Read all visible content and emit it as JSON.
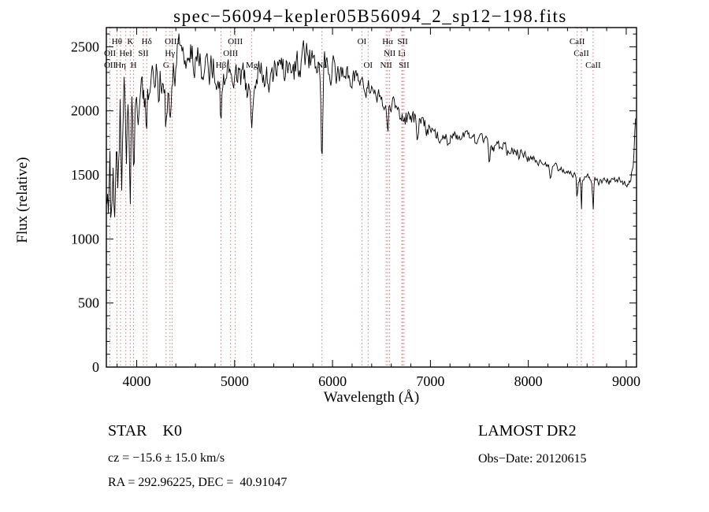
{
  "title": "spec−56094−kepler05B56094_2_sp12−198.fits",
  "footer": {
    "class_label": "STAR    K0",
    "survey": "LAMOST DR2",
    "cz": "cz = −15.6 ± 15.0 km/s",
    "obs_date": "Obs−Date: 20120615",
    "radec": "RA = 292.96225, DEC =  40.91047"
  },
  "chart_data": {
    "type": "line",
    "title": "spec−56094−kepler05B56094_2_sp12−198.fits",
    "xlabel": "Wavelength (Å)",
    "ylabel": "Flux (relative)",
    "xlim": [
      3690,
      9105
    ],
    "ylim": [
      0,
      2650
    ],
    "xticks": [
      4000,
      5000,
      6000,
      7000,
      8000,
      9000
    ],
    "yticks": [
      0,
      500,
      1000,
      1500,
      2000,
      2500
    ],
    "grid": false,
    "legend": "none",
    "colors": {
      "spectrum": "#000000",
      "reference_lines": "#cc7b7b"
    },
    "reference_lines": [
      3727,
      3798,
      3835,
      3889,
      3934,
      3968,
      4068,
      4102,
      4300,
      4340,
      4363,
      4861,
      4959,
      5007,
      5175,
      5892,
      6300,
      6364,
      6548,
      6563,
      6583,
      6708,
      6716,
      6731,
      8498,
      8542,
      8662
    ],
    "line_labels": [
      {
        "text": "Hθ",
        "wl": 3798,
        "row": 1
      },
      {
        "text": "K",
        "wl": 3934,
        "row": 1
      },
      {
        "text": "Hδ",
        "wl": 4102,
        "row": 1
      },
      {
        "text": "OIII",
        "wl": 4363,
        "row": 1
      },
      {
        "text": "OIII",
        "wl": 5007,
        "row": 1
      },
      {
        "text": "OI",
        "wl": 6300,
        "row": 1
      },
      {
        "text": "Hα",
        "wl": 6563,
        "row": 1
      },
      {
        "text": "SII",
        "wl": 6716,
        "row": 1
      },
      {
        "text": "CaII",
        "wl": 8498,
        "row": 1
      },
      {
        "text": "OII",
        "wl": 3727,
        "row": 2
      },
      {
        "text": "HeI",
        "wl": 3889,
        "row": 2
      },
      {
        "text": "SII",
        "wl": 4068,
        "row": 2
      },
      {
        "text": "Hγ",
        "wl": 4340,
        "row": 2
      },
      {
        "text": "OIII",
        "wl": 4959,
        "row": 2
      },
      {
        "text": "NII",
        "wl": 6583,
        "row": 2
      },
      {
        "text": "Li",
        "wl": 6708,
        "row": 2
      },
      {
        "text": "CaII",
        "wl": 8542,
        "row": 2
      },
      {
        "text": "OII",
        "wl": 3727,
        "row": 3
      },
      {
        "text": "Hη",
        "wl": 3835,
        "row": 3
      },
      {
        "text": "H",
        "wl": 3968,
        "row": 3
      },
      {
        "text": "G",
        "wl": 4300,
        "row": 3
      },
      {
        "text": "Hβ",
        "wl": 4861,
        "row": 3
      },
      {
        "text": "Mg",
        "wl": 5175,
        "row": 3
      },
      {
        "text": "Na",
        "wl": 5892,
        "row": 3
      },
      {
        "text": "OI",
        "wl": 6364,
        "row": 3
      },
      {
        "text": "NII",
        "wl": 6548,
        "row": 3
      },
      {
        "text": "SII",
        "wl": 6731,
        "row": 3
      },
      {
        "text": "CaII",
        "wl": 8662,
        "row": 3
      }
    ],
    "spectrum": {
      "range": [
        3695,
        9095
      ],
      "step": 8,
      "envelope": [
        [
          3695,
          1500
        ],
        [
          3710,
          1050
        ],
        [
          3725,
          1700
        ],
        [
          3740,
          950
        ],
        [
          3758,
          1850
        ],
        [
          3775,
          1000
        ],
        [
          3792,
          1950
        ],
        [
          3810,
          1250
        ],
        [
          3830,
          2050
        ],
        [
          3850,
          1400
        ],
        [
          3870,
          2100
        ],
        [
          3892,
          1550
        ],
        [
          3912,
          2150
        ],
        [
          3935,
          1650
        ],
        [
          3955,
          2100
        ],
        [
          3975,
          1800
        ],
        [
          4000,
          2150
        ],
        [
          4030,
          1950
        ],
        [
          4060,
          2100
        ],
        [
          4100,
          2050
        ],
        [
          4140,
          2250
        ],
        [
          4180,
          2150
        ],
        [
          4220,
          2300
        ],
        [
          4260,
          2250
        ],
        [
          4300,
          2200
        ],
        [
          4345,
          2120
        ],
        [
          4385,
          2350
        ],
        [
          4425,
          2450
        ],
        [
          4465,
          2500
        ],
        [
          4505,
          2420
        ],
        [
          4545,
          2480
        ],
        [
          4585,
          2380
        ],
        [
          4625,
          2420
        ],
        [
          4665,
          2350
        ],
        [
          4705,
          2380
        ],
        [
          4745,
          2320
        ],
        [
          4785,
          2350
        ],
        [
          4825,
          2300
        ],
        [
          4865,
          2220
        ],
        [
          4905,
          2320
        ],
        [
          4945,
          2280
        ],
        [
          4985,
          2300
        ],
        [
          5025,
          2280
        ],
        [
          5065,
          2260
        ],
        [
          5105,
          2220
        ],
        [
          5145,
          2150
        ],
        [
          5180,
          2100
        ],
        [
          5225,
          2250
        ],
        [
          5265,
          2300
        ],
        [
          5305,
          2280
        ],
        [
          5355,
          2250
        ],
        [
          5405,
          2300
        ],
        [
          5455,
          2330
        ],
        [
          5505,
          2300
        ],
        [
          5555,
          2340
        ],
        [
          5605,
          2330
        ],
        [
          5655,
          2380
        ],
        [
          5705,
          2400
        ],
        [
          5755,
          2430
        ],
        [
          5805,
          2420
        ],
        [
          5845,
          2400
        ],
        [
          5885,
          2400
        ],
        [
          5925,
          2380
        ],
        [
          5975,
          2360
        ],
        [
          6035,
          2320
        ],
        [
          6105,
          2290
        ],
        [
          6185,
          2260
        ],
        [
          6265,
          2230
        ],
        [
          6345,
          2190
        ],
        [
          6425,
          2140
        ],
        [
          6505,
          2090
        ],
        [
          6575,
          2050
        ],
        [
          6655,
          2010
        ],
        [
          6755,
          1960
        ],
        [
          6855,
          1910
        ],
        [
          6955,
          1860
        ],
        [
          7055,
          1820
        ],
        [
          7155,
          1795
        ],
        [
          7255,
          1805
        ],
        [
          7355,
          1785
        ],
        [
          7455,
          1765
        ],
        [
          7555,
          1750
        ],
        [
          7655,
          1715
        ],
        [
          7755,
          1700
        ],
        [
          7855,
          1675
        ],
        [
          7955,
          1650
        ],
        [
          8055,
          1620
        ],
        [
          8155,
          1590
        ],
        [
          8255,
          1560
        ],
        [
          8355,
          1535
        ],
        [
          8455,
          1510
        ],
        [
          8525,
          1485
        ],
        [
          8605,
          1470
        ],
        [
          8685,
          1455
        ],
        [
          8765,
          1445
        ],
        [
          8845,
          1455
        ],
        [
          8925,
          1445
        ],
        [
          9005,
          1435
        ],
        [
          9045,
          1445
        ],
        [
          9072,
          1600
        ],
        [
          9095,
          1960
        ]
      ],
      "noise_regions": [
        {
          "from": 3690,
          "to": 3900,
          "amp": 260
        },
        {
          "from": 3900,
          "to": 4450,
          "amp": 150
        },
        {
          "from": 4450,
          "to": 6050,
          "amp": 105
        },
        {
          "from": 6050,
          "to": 7050,
          "amp": 65
        },
        {
          "from": 7050,
          "to": 8050,
          "amp": 42
        },
        {
          "from": 8050,
          "to": 9105,
          "amp": 28
        }
      ],
      "absorption_dips": [
        {
          "wl": 3934,
          "depth": 480,
          "width": 10
        },
        {
          "wl": 3968,
          "depth": 420,
          "width": 10
        },
        {
          "wl": 4102,
          "depth": 330,
          "width": 9
        },
        {
          "wl": 4227,
          "depth": 180,
          "width": 8
        },
        {
          "wl": 4300,
          "depth": 260,
          "width": 12
        },
        {
          "wl": 4340,
          "depth": 360,
          "width": 9
        },
        {
          "wl": 4861,
          "depth": 350,
          "width": 9
        },
        {
          "wl": 5175,
          "depth": 260,
          "width": 13
        },
        {
          "wl": 5892,
          "depth": 680,
          "width": 11
        },
        {
          "wl": 6563,
          "depth": 280,
          "width": 8
        },
        {
          "wl": 6870,
          "depth": 140,
          "width": 10
        },
        {
          "wl": 7190,
          "depth": 90,
          "width": 14
        },
        {
          "wl": 7605,
          "depth": 150,
          "width": 11
        },
        {
          "wl": 8230,
          "depth": 100,
          "width": 12
        },
        {
          "wl": 8498,
          "depth": 160,
          "width": 7
        },
        {
          "wl": 8542,
          "depth": 230,
          "width": 7
        },
        {
          "wl": 8662,
          "depth": 230,
          "width": 7
        }
      ]
    }
  }
}
